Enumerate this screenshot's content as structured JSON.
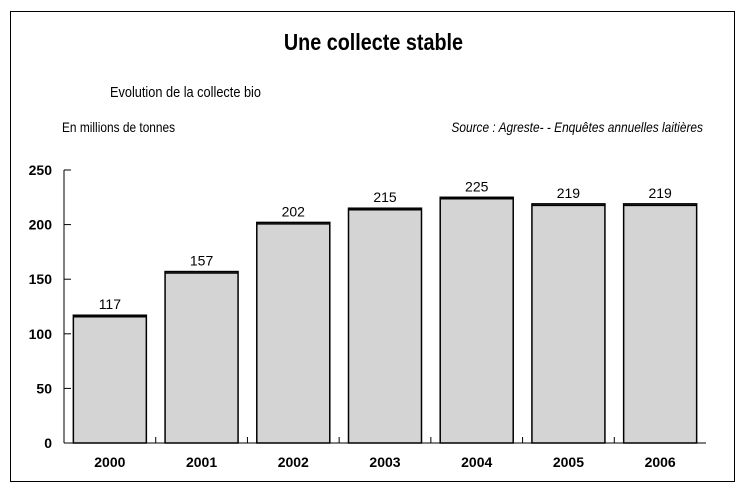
{
  "chart_data": {
    "type": "bar",
    "title": "Une collecte stable",
    "subtitle": "Evolution de la collecte bio",
    "unit_label": "En millions de tonnes",
    "source": "Source : Agreste- - Enquêtes annuelles laitières",
    "categories": [
      "2000",
      "2001",
      "2002",
      "2003",
      "2004",
      "2005",
      "2006"
    ],
    "values": [
      117,
      157,
      202,
      215,
      225,
      219,
      219
    ],
    "data_labels": [
      "117",
      "157",
      "202",
      "215",
      "225",
      "219",
      "219"
    ],
    "ylim": [
      0,
      250
    ],
    "yticks": [
      0,
      50,
      100,
      150,
      200,
      250
    ],
    "bar_color": "#d4d4d4",
    "grid": false,
    "legend": "none"
  }
}
